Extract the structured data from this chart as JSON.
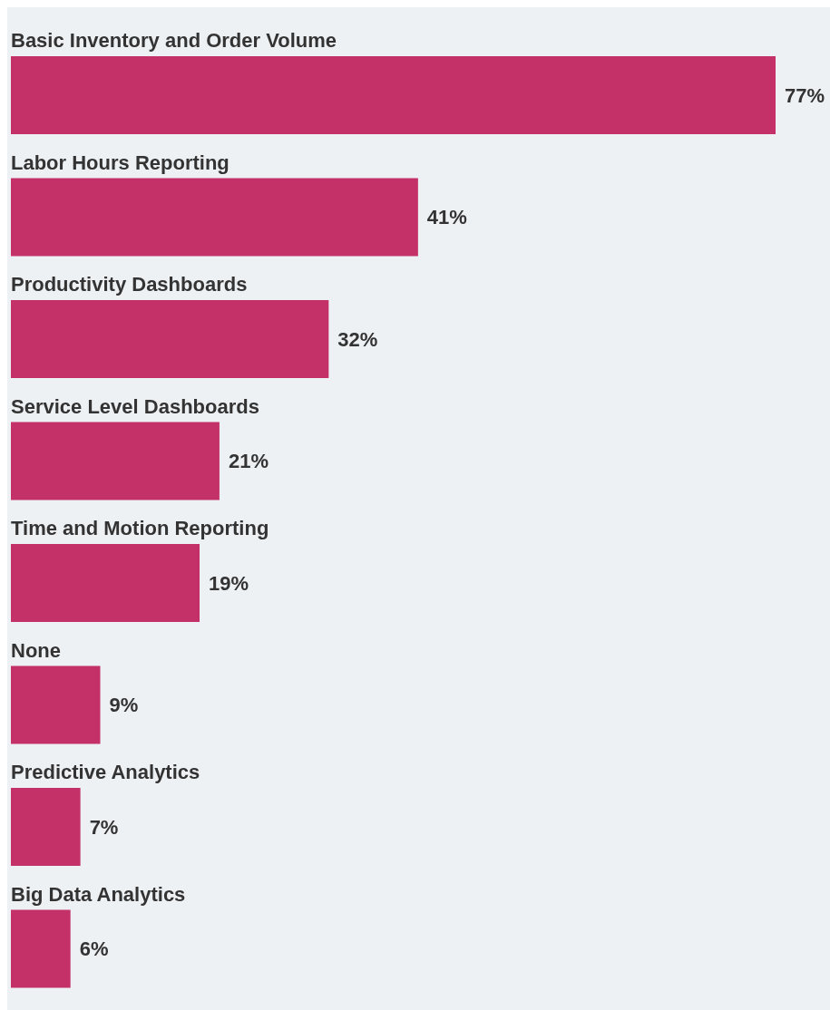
{
  "chart_data": {
    "type": "bar",
    "orientation": "horizontal",
    "categories": [
      "Basic Inventory and Order Volume",
      "Labor Hours Reporting",
      "Productivity Dashboards",
      "Service Level Dashboards",
      "Time and Motion Reporting",
      "None",
      "Predictive Analytics",
      "Big Data Analytics"
    ],
    "values": [
      77,
      41,
      32,
      21,
      19,
      9,
      7,
      6
    ],
    "value_labels": [
      "77%",
      "41%",
      "32%",
      "21%",
      "19%",
      "9%",
      "7%",
      "6%"
    ],
    "color": "#c43168",
    "grid": false,
    "legend": false
  }
}
